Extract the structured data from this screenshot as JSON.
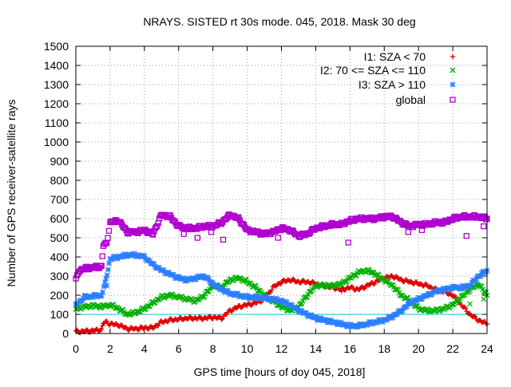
{
  "chart_data": {
    "type": "scatter",
    "title": "NRAYS. SISTED rt 30s mode. 045, 2018. Mask 30 deg",
    "xlabel": "GPS time [hours of doy 045, 2018]",
    "ylabel": "Number of GPS receiver-satellite rays",
    "xlim": [
      0,
      24
    ],
    "ylim": [
      0,
      1500
    ],
    "x_ticks": [
      0,
      2,
      4,
      6,
      8,
      10,
      12,
      14,
      16,
      18,
      20,
      22,
      24
    ],
    "y_ticks": [
      0,
      100,
      200,
      300,
      400,
      500,
      600,
      700,
      800,
      900,
      1000,
      1100,
      1200,
      1300,
      1400,
      1500
    ],
    "grid": true,
    "legend_position": "top-right",
    "reference_line": {
      "y": 100,
      "color": "#00c8c8"
    },
    "series": [
      {
        "name": "I1: SZA < 70",
        "marker": "plus",
        "color": "#e00000",
        "x": [
          0.0,
          0.5,
          1.0,
          1.5,
          1.6,
          1.8,
          2.0,
          2.5,
          3.0,
          3.5,
          4.0,
          4.5,
          5.0,
          5.5,
          6.0,
          6.5,
          7.0,
          7.5,
          8.0,
          8.5,
          9.0,
          9.5,
          10.0,
          10.5,
          11.0,
          11.5,
          12.0,
          12.5,
          13.0,
          13.5,
          14.0,
          14.5,
          15.0,
          15.5,
          16.0,
          16.5,
          17.0,
          17.5,
          18.0,
          18.5,
          19.0,
          19.5,
          20.0,
          20.5,
          21.0,
          21.5,
          22.0,
          22.5,
          23.0,
          23.5,
          24.0
        ],
        "y": [
          10,
          12,
          15,
          20,
          55,
          60,
          50,
          45,
          25,
          25,
          30,
          30,
          60,
          70,
          75,
          80,
          80,
          80,
          85,
          80,
          120,
          140,
          150,
          160,
          180,
          240,
          270,
          280,
          270,
          270,
          260,
          250,
          240,
          230,
          240,
          230,
          250,
          270,
          290,
          300,
          280,
          270,
          260,
          250,
          230,
          220,
          200,
          150,
          100,
          70,
          50
        ]
      },
      {
        "name": "I2: 70 <= SZA <= 110",
        "marker": "cross",
        "color": "#00b000",
        "x": [
          0.0,
          0.5,
          1.0,
          1.5,
          2.0,
          2.5,
          3.0,
          3.5,
          4.0,
          4.5,
          5.0,
          5.5,
          6.0,
          6.5,
          7.0,
          7.5,
          8.0,
          8.5,
          9.0,
          9.5,
          10.0,
          10.5,
          11.0,
          11.5,
          12.0,
          12.5,
          13.0,
          13.5,
          14.0,
          14.5,
          15.0,
          15.5,
          16.0,
          16.5,
          17.0,
          17.5,
          18.0,
          18.5,
          19.0,
          19.5,
          20.0,
          20.5,
          21.0,
          21.5,
          22.0,
          22.5,
          23.0,
          23.5,
          24.0
        ],
        "y": [
          130,
          140,
          145,
          140,
          150,
          130,
          100,
          110,
          130,
          160,
          190,
          200,
          190,
          180,
          170,
          200,
          250,
          240,
          280,
          290,
          270,
          240,
          200,
          170,
          140,
          120,
          140,
          200,
          250,
          250,
          250,
          260,
          290,
          320,
          330,
          310,
          280,
          250,
          200,
          170,
          130,
          120,
          120,
          130,
          150,
          190,
          230,
          260,
          200
        ]
      },
      {
        "name": "I3: SZA > 110",
        "marker": "star",
        "color": "#2a7fff",
        "x": [
          0.0,
          0.5,
          1.0,
          1.5,
          1.7,
          2.0,
          2.5,
          3.0,
          3.5,
          4.0,
          4.5,
          5.0,
          5.5,
          6.0,
          6.5,
          7.0,
          7.5,
          8.0,
          8.5,
          9.0,
          9.5,
          10.0,
          10.5,
          11.0,
          11.5,
          12.0,
          12.5,
          13.0,
          13.5,
          14.0,
          14.5,
          15.0,
          15.5,
          16.0,
          16.5,
          17.0,
          17.5,
          18.0,
          18.5,
          19.0,
          19.5,
          20.0,
          20.5,
          21.0,
          21.5,
          22.0,
          22.5,
          23.0,
          23.5,
          24.0
        ],
        "y": [
          150,
          190,
          195,
          200,
          260,
          390,
          400,
          410,
          410,
          400,
          360,
          330,
          310,
          290,
          280,
          290,
          300,
          260,
          230,
          210,
          200,
          190,
          190,
          185,
          180,
          170,
          150,
          120,
          100,
          80,
          70,
          60,
          50,
          40,
          40,
          50,
          60,
          70,
          90,
          120,
          160,
          180,
          200,
          220,
          230,
          240,
          240,
          250,
          300,
          330
        ]
      },
      {
        "name": "global",
        "marker": "square",
        "color": "#b000d0",
        "x": [
          0.0,
          0.2,
          0.5,
          1.0,
          1.5,
          1.6,
          1.8,
          2.0,
          2.5,
          3.0,
          3.5,
          4.0,
          4.5,
          5.0,
          5.5,
          6.0,
          6.5,
          7.0,
          7.5,
          8.0,
          8.5,
          9.0,
          9.5,
          10.0,
          10.5,
          11.0,
          11.5,
          12.0,
          12.5,
          13.0,
          13.5,
          14.0,
          14.5,
          15.0,
          15.5,
          16.0,
          16.5,
          17.0,
          17.5,
          18.0,
          18.5,
          19.0,
          19.5,
          20.0,
          20.5,
          21.0,
          21.5,
          22.0,
          22.5,
          23.0,
          23.5,
          24.0
        ],
        "y": [
          280,
          330,
          340,
          345,
          350,
          460,
          470,
          580,
          590,
          530,
          530,
          540,
          520,
          620,
          610,
          560,
          550,
          550,
          560,
          560,
          580,
          620,
          600,
          540,
          530,
          520,
          530,
          550,
          540,
          510,
          520,
          550,
          560,
          570,
          570,
          590,
          600,
          600,
          600,
          610,
          610,
          580,
          560,
          570,
          570,
          580,
          580,
          600,
          610,
          610,
          610,
          600
        ]
      }
    ],
    "outliers": [
      {
        "series": "global",
        "x": 6.3,
        "y": 520
      },
      {
        "series": "global",
        "x": 7.1,
        "y": 500
      },
      {
        "series": "global",
        "x": 7.9,
        "y": 530
      },
      {
        "series": "global",
        "x": 8.6,
        "y": 490
      },
      {
        "series": "global",
        "x": 11.8,
        "y": 500
      },
      {
        "series": "global",
        "x": 15.9,
        "y": 475
      },
      {
        "series": "global",
        "x": 19.4,
        "y": 530
      },
      {
        "series": "global",
        "x": 20.2,
        "y": 540
      },
      {
        "series": "global",
        "x": 22.8,
        "y": 510
      },
      {
        "series": "global",
        "x": 23.8,
        "y": 560
      },
      {
        "series": "I2: 70 <= SZA <= 110",
        "x": 23.0,
        "y": 155
      },
      {
        "series": "I2: 70 <= SZA <= 110",
        "x": 23.8,
        "y": 180
      },
      {
        "series": "I1: SZA < 70",
        "x": 15.5,
        "y": 220
      },
      {
        "series": "I3: SZA > 110",
        "x": 1.8,
        "y": 250
      }
    ]
  }
}
